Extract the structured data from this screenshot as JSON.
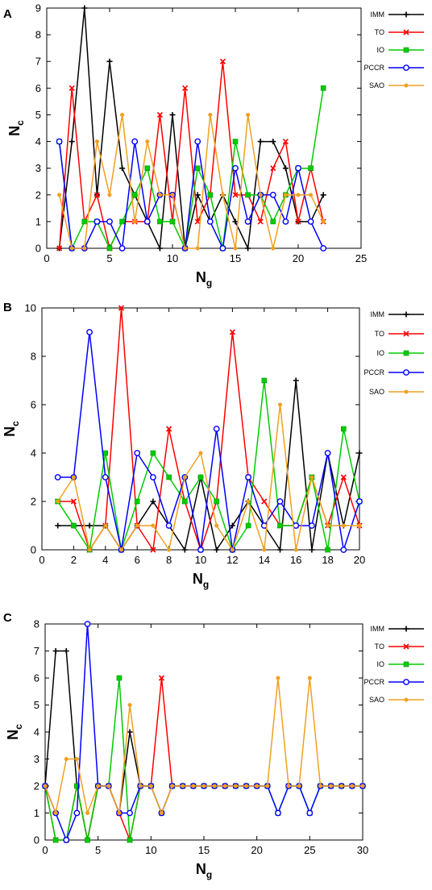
{
  "chart_data": [
    {
      "panel": "A",
      "type": "line",
      "xlabel": "N",
      "xlabel_sub": "g",
      "ylabel": "N",
      "ylabel_sub": "c",
      "xlim": [
        0,
        25
      ],
      "ylim": [
        0,
        9
      ],
      "xticks": [
        0,
        5,
        10,
        15,
        20,
        25
      ],
      "yticks": [
        0,
        1,
        2,
        3,
        4,
        5,
        6,
        7,
        8,
        9
      ],
      "grid": false,
      "legend_position": "right",
      "series": [
        {
          "name": "IMM",
          "color": "#000000",
          "marker": "plus",
          "x": [
            1,
            2,
            3,
            4,
            5,
            6,
            7,
            8,
            9,
            10,
            11,
            12,
            13,
            14,
            15,
            16,
            17,
            18,
            19,
            20,
            21,
            22
          ],
          "y": [
            0,
            4,
            9,
            2,
            7,
            3,
            2,
            1,
            0,
            5,
            0,
            2,
            1,
            2,
            1,
            0,
            4,
            4,
            3,
            1,
            1,
            2
          ]
        },
        {
          "name": "TO",
          "color": "#ff0000",
          "marker": "cross",
          "x": [
            1,
            2,
            3,
            4,
            5,
            6,
            7,
            8,
            9,
            10,
            11,
            12,
            13,
            14,
            15,
            16,
            17,
            18,
            19,
            20,
            21,
            22
          ],
          "y": [
            0,
            6,
            1,
            2,
            0,
            1,
            1,
            1,
            5,
            1,
            6,
            1,
            2,
            7,
            2,
            2,
            1,
            3,
            4,
            1,
            3,
            1
          ]
        },
        {
          "name": "IO",
          "color": "#00cc00",
          "marker": "square",
          "x": [
            1,
            2,
            3,
            4,
            5,
            6,
            7,
            8,
            9,
            10,
            11,
            12,
            13,
            14,
            15,
            16,
            17,
            18,
            19,
            20,
            21,
            22
          ],
          "y": [
            4,
            0,
            1,
            1,
            0,
            1,
            2,
            3,
            1,
            1,
            0,
            3,
            2,
            0,
            4,
            2,
            2,
            1,
            2,
            3,
            3,
            6
          ]
        },
        {
          "name": "PCCR",
          "color": "#0000ff",
          "marker": "circle",
          "x": [
            1,
            2,
            3,
            4,
            5,
            6,
            7,
            8,
            9,
            10,
            11,
            12,
            13,
            14,
            15,
            16,
            17,
            18,
            19,
            20,
            21,
            22
          ],
          "y": [
            4,
            0,
            0,
            1,
            1,
            0,
            4,
            1,
            2,
            2,
            0,
            4,
            1,
            0,
            3,
            1,
            2,
            2,
            1,
            3,
            1,
            0
          ]
        },
        {
          "name": "SAO",
          "color": "#f0a020",
          "marker": "dot",
          "x": [
            1,
            2,
            3,
            4,
            5,
            6,
            7,
            8,
            9,
            10,
            11,
            12,
            13,
            14,
            15,
            16,
            17,
            18,
            19,
            20,
            21,
            22
          ],
          "y": [
            2,
            0,
            0,
            4,
            2,
            5,
            1,
            4,
            2,
            2,
            0,
            0,
            5,
            2,
            0,
            5,
            2,
            0,
            2,
            2,
            2,
            1
          ]
        }
      ]
    },
    {
      "panel": "B",
      "type": "line",
      "xlabel": "N",
      "xlabel_sub": "g",
      "ylabel": "N",
      "ylabel_sub": "c",
      "xlim": [
        0,
        20
      ],
      "ylim": [
        0,
        10
      ],
      "xticks": [
        0,
        2,
        4,
        6,
        8,
        10,
        12,
        14,
        16,
        18,
        20
      ],
      "yticks": [
        0,
        2,
        4,
        6,
        8,
        10
      ],
      "grid": false,
      "legend_position": "right",
      "series": [
        {
          "name": "IMM",
          "color": "#000000",
          "marker": "plus",
          "x": [
            1,
            2,
            3,
            4,
            5,
            6,
            7,
            8,
            9,
            10,
            11,
            12,
            13,
            14,
            15,
            16,
            17,
            18,
            19,
            20
          ],
          "y": [
            1,
            1,
            1,
            1,
            0,
            1,
            2,
            1,
            0,
            3,
            0,
            1,
            2,
            1,
            0,
            7,
            0,
            4,
            1,
            4
          ]
        },
        {
          "name": "TO",
          "color": "#ff0000",
          "marker": "cross",
          "x": [
            1,
            2,
            3,
            4,
            5,
            6,
            7,
            8,
            9,
            10,
            11,
            12,
            13,
            14,
            15,
            16,
            17,
            18,
            19,
            20
          ],
          "y": [
            2,
            2,
            0,
            1,
            10,
            1,
            0,
            5,
            2,
            0,
            2,
            9,
            3,
            2,
            1,
            1,
            3,
            1,
            3,
            1
          ]
        },
        {
          "name": "IO",
          "color": "#00cc00",
          "marker": "square",
          "x": [
            1,
            2,
            3,
            4,
            5,
            6,
            7,
            8,
            9,
            10,
            11,
            12,
            13,
            14,
            15,
            16,
            17,
            18,
            19,
            20
          ],
          "y": [
            2,
            1,
            0,
            4,
            0,
            2,
            4,
            3,
            2,
            3,
            2,
            0,
            1,
            7,
            1,
            1,
            3,
            0,
            5,
            2
          ]
        },
        {
          "name": "PCCR",
          "color": "#0000ff",
          "marker": "circle",
          "x": [
            1,
            2,
            3,
            4,
            5,
            6,
            7,
            8,
            9,
            10,
            11,
            12,
            13,
            14,
            15,
            16,
            17,
            18,
            19,
            20
          ],
          "y": [
            3,
            3,
            9,
            3,
            0,
            4,
            3,
            1,
            3,
            0,
            5,
            0,
            3,
            1,
            2,
            1,
            1,
            4,
            0,
            2
          ]
        },
        {
          "name": "SAO",
          "color": "#f0a020",
          "marker": "dot",
          "x": [
            1,
            2,
            3,
            4,
            5,
            6,
            7,
            8,
            9,
            10,
            11,
            12,
            13,
            14,
            15,
            16,
            17,
            18,
            19,
            20
          ],
          "y": [
            2,
            3,
            0,
            1,
            0,
            1,
            1,
            0,
            3,
            4,
            1,
            0,
            2,
            0,
            6,
            0,
            3,
            1,
            1,
            1
          ]
        }
      ]
    },
    {
      "panel": "C",
      "type": "line",
      "xlabel": "N",
      "xlabel_sub": "g",
      "ylabel": "N",
      "ylabel_sub": "c",
      "xlim": [
        0,
        30
      ],
      "ylim": [
        0,
        8
      ],
      "xticks": [
        0,
        5,
        10,
        15,
        20,
        25,
        30
      ],
      "yticks": [
        0,
        1,
        2,
        3,
        4,
        5,
        6,
        7,
        8
      ],
      "grid": false,
      "legend_position": "right",
      "series": [
        {
          "name": "IMM",
          "color": "#000000",
          "marker": "plus",
          "x": [
            0,
            1,
            2,
            3,
            4,
            5,
            6,
            7,
            8,
            9,
            10
          ],
          "y": [
            2,
            7,
            7,
            2,
            0,
            2,
            2,
            1,
            4,
            2,
            2
          ]
        },
        {
          "name": "TO",
          "color": "#ff0000",
          "marker": "cross",
          "x": [
            0,
            1,
            2,
            3,
            4,
            5,
            6,
            7,
            8,
            9,
            10,
            11,
            12
          ],
          "y": [
            2,
            0,
            0,
            2,
            0,
            2,
            2,
            1,
            0,
            2,
            2,
            6,
            2
          ]
        },
        {
          "name": "IO",
          "color": "#00cc00",
          "marker": "square",
          "x": [
            0,
            1,
            2,
            3,
            4,
            5,
            6,
            7,
            8,
            9,
            10,
            11,
            12,
            13,
            14,
            15,
            16,
            17,
            18,
            19,
            20,
            21,
            22,
            23,
            24,
            25,
            26,
            27,
            28,
            29,
            30
          ],
          "y": [
            2,
            0,
            0,
            2,
            0,
            2,
            2,
            6,
            0,
            2,
            2,
            1,
            2,
            2,
            2,
            2,
            2,
            2,
            2,
            2,
            2,
            2,
            1,
            2,
            2,
            1,
            2,
            2,
            2,
            2,
            2
          ]
        },
        {
          "name": "PCCR",
          "color": "#0000ff",
          "marker": "circle",
          "x": [
            0,
            1,
            2,
            3,
            4,
            5,
            6,
            7,
            8,
            9,
            10,
            11,
            12,
            13,
            14,
            15,
            16,
            17,
            18,
            19,
            20,
            21,
            22,
            23,
            24,
            25,
            26,
            27,
            28,
            29,
            30
          ],
          "y": [
            2,
            1,
            0,
            1,
            8,
            2,
            2,
            1,
            1,
            2,
            2,
            1,
            2,
            2,
            2,
            2,
            2,
            2,
            2,
            2,
            2,
            2,
            1,
            2,
            2,
            1,
            2,
            2,
            2,
            2,
            2
          ]
        },
        {
          "name": "SAO",
          "color": "#f0a020",
          "marker": "dot",
          "x": [
            0,
            1,
            2,
            3,
            4,
            5,
            6,
            7,
            8,
            9,
            10,
            11,
            12,
            13,
            14,
            15,
            16,
            17,
            18,
            19,
            20,
            21,
            22,
            23,
            24,
            25,
            26,
            27,
            28,
            29,
            30
          ],
          "y": [
            2,
            1,
            3,
            3,
            1,
            2,
            2,
            1,
            5,
            2,
            2,
            1,
            2,
            2,
            2,
            2,
            2,
            2,
            2,
            2,
            2,
            2,
            6,
            2,
            2,
            6,
            2,
            2,
            2,
            2,
            2
          ]
        }
      ]
    }
  ]
}
